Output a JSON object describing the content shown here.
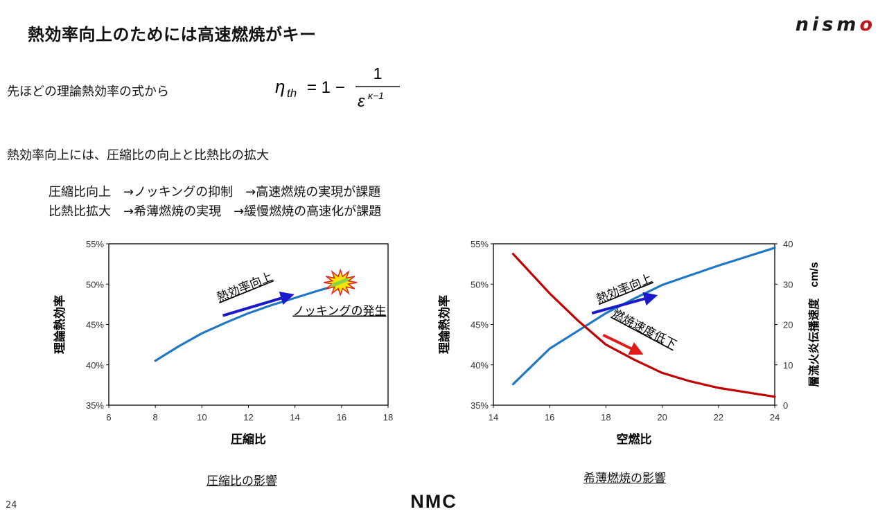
{
  "title": "熱効率向上のためには高速燃焼がキー",
  "brand": {
    "nismo_main": "nism",
    "nismo_last": "o",
    "nmc": "NMC",
    "accent": "#c3161c"
  },
  "text": {
    "line1": "先ほどの理論熱効率の式から",
    "line2": "熱効率向上には、圧縮比の向上と比熱比の拡大",
    "line3": "圧縮比向上　→ノッキングの抑制　→高速燃焼の実現が課題",
    "line4": "比熱比拡大　→希薄燃焼の実現　→緩慢燃焼の高速化が課題"
  },
  "formula": {
    "lhs": "η",
    "lhs_sub": "th",
    "eq": "= 1 −",
    "numerator": "1",
    "denominator": "ε",
    "exponent": "κ−1"
  },
  "captions": {
    "left": "圧縮比の影響",
    "right": "希薄燃焼の影響"
  },
  "page_number": "24",
  "chart_data": [
    {
      "type": "line",
      "xlabel": "圧縮比",
      "ylabel": "理論熱効率",
      "xlim": [
        6,
        18
      ],
      "ylim": [
        35,
        55
      ],
      "xticks": [
        6,
        8,
        10,
        12,
        14,
        16,
        18
      ],
      "xtick_labels": [
        "6",
        "8",
        "10",
        "12",
        "14",
        "16",
        "18"
      ],
      "yticks": [
        35,
        40,
        45,
        50,
        55
      ],
      "ytick_labels": [
        "35%",
        "40%",
        "45%",
        "50%",
        "55%"
      ],
      "series": [
        {
          "color": "#1f77c4",
          "x": [
            8,
            9,
            10,
            11,
            12,
            13,
            14,
            15,
            16
          ],
          "y": [
            40.5,
            42.3,
            43.9,
            45.2,
            46.4,
            47.4,
            48.3,
            49.2,
            50.0
          ]
        }
      ],
      "annotations": [
        {
          "text": "熱効率向上",
          "x": 11.9,
          "y": 49.2,
          "rotate": -22,
          "underline": true,
          "anchor": "middle"
        },
        {
          "text": "ノッキングの発生",
          "x": 13.9,
          "y": 46.2,
          "rotate": 0,
          "underline": true,
          "anchor": "start"
        }
      ],
      "arrows": [
        {
          "color": "#1a1ac9",
          "x1": 10.9,
          "y1": 46.1,
          "x2": 13.8,
          "y2": 48.6
        }
      ],
      "markers": [
        {
          "type": "knock-burst",
          "x": 15.95,
          "y": 50.2,
          "fill": "#f5e400",
          "stroke": "#e02020",
          "inner": "#8ad14a"
        }
      ],
      "grid": false
    },
    {
      "type": "line",
      "xlabel": "空燃比",
      "ylabel": "理論熱効率",
      "y2label": "層流火炎伝播速度　cm/s",
      "xlim": [
        14,
        24
      ],
      "ylim": [
        35,
        55
      ],
      "y2lim": [
        0,
        40
      ],
      "xticks": [
        14,
        16,
        18,
        20,
        22,
        24
      ],
      "xtick_labels": [
        "14",
        "16",
        "18",
        "20",
        "22",
        "24"
      ],
      "yticks": [
        35,
        40,
        45,
        50,
        55
      ],
      "ytick_labels": [
        "35%",
        "40%",
        "45%",
        "50%",
        "55%"
      ],
      "y2ticks": [
        0,
        10,
        20,
        30,
        40
      ],
      "y2tick_labels": [
        "0",
        "10",
        "20",
        "30",
        "40"
      ],
      "series": [
        {
          "color": "#1f77c4",
          "axis": "left",
          "x": [
            14.7,
            16,
            17,
            18,
            19,
            20,
            21,
            22,
            23,
            24
          ],
          "y": [
            37.6,
            42.0,
            44.2,
            46.4,
            48.2,
            49.9,
            51.1,
            52.3,
            53.4,
            54.5
          ]
        },
        {
          "color": "#c00000",
          "axis": "right",
          "x": [
            14.7,
            16,
            17,
            18,
            19,
            20,
            21,
            22,
            23,
            24
          ],
          "y": [
            37.5,
            27.7,
            21.0,
            15.0,
            11.3,
            8.0,
            5.9,
            4.3,
            3.2,
            2.1
          ]
        }
      ],
      "annotations": [
        {
          "text": "熱効率向上",
          "x": 18.7,
          "y": 49.0,
          "rotate": -22,
          "underline": true,
          "anchor": "middle"
        },
        {
          "text": "燃焼速度低下",
          "x": 19.3,
          "y": 44.0,
          "rotate": 28,
          "underline": true,
          "anchor": "middle"
        }
      ],
      "arrows": [
        {
          "color": "#1a1ac9",
          "x1": 17.5,
          "y1": 46.4,
          "x2": 19.7,
          "y2": 48.5
        },
        {
          "color": "#e01a1a",
          "x1": 17.9,
          "y1": 43.7,
          "x2": 19.2,
          "y2": 41.5
        }
      ],
      "grid": false
    }
  ]
}
